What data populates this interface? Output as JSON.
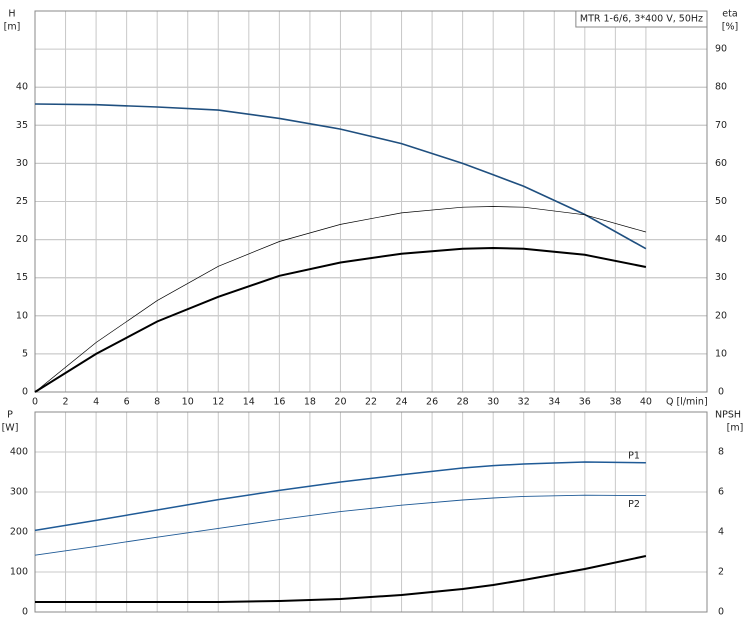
{
  "chart_data": [
    {
      "type": "line",
      "title": "MTR 1-6/6, 3*400 V, 50Hz",
      "ylabel": "H",
      "yunit": "[m]",
      "y2label": "eta",
      "y2unit": "[%]",
      "xlabel": "Q [l/min]",
      "xlim": [
        0,
        44
      ],
      "xticks": [
        0,
        2,
        4,
        6,
        8,
        10,
        12,
        14,
        16,
        18,
        20,
        22,
        24,
        26,
        28,
        30,
        32,
        34,
        36,
        38,
        40
      ],
      "ylim": [
        0,
        50
      ],
      "yticks": [
        0,
        5,
        10,
        15,
        20,
        25,
        30,
        35,
        40
      ],
      "y2lim": [
        0,
        100
      ],
      "y2ticks": [
        0,
        10,
        20,
        30,
        40,
        50,
        60,
        70,
        80,
        90
      ],
      "grid": true,
      "x": [
        0,
        4,
        8,
        12,
        16,
        20,
        24,
        28,
        30,
        32,
        36,
        40
      ],
      "series": [
        {
          "color": "#1f4f7f",
          "values": [
            37.8,
            37.7,
            37.4,
            37.0,
            35.9,
            34.5,
            32.6,
            30.0,
            28.5,
            27.0,
            23.3,
            18.8
          ]
        },
        {
          "color": "#000000",
          "axis": "y2",
          "values": [
            0,
            13,
            24,
            33,
            39.5,
            44,
            47,
            48.5,
            48.7,
            48.5,
            46.5,
            42
          ]
        },
        {
          "color": "#000000",
          "axis": "y2",
          "values": [
            0,
            10,
            18.5,
            25,
            30.5,
            34,
            36.3,
            37.6,
            37.8,
            37.6,
            36,
            32.8
          ]
        }
      ]
    },
    {
      "type": "line",
      "ylabel": "P",
      "yunit": "[W]",
      "y2label": "NPSH",
      "y2unit": "[m]",
      "xlim": [
        0,
        44
      ],
      "ylim": [
        0,
        500
      ],
      "yticks": [
        0,
        100,
        200,
        300,
        400
      ],
      "y2lim": [
        0,
        10
      ],
      "y2ticks": [
        0,
        2,
        4,
        6,
        8
      ],
      "grid": true,
      "x": [
        0,
        4,
        8,
        12,
        16,
        20,
        24,
        28,
        30,
        32,
        36,
        40
      ],
      "series": [
        {
          "name": "P1",
          "color": "#1f5a96",
          "values": [
            204,
            229,
            255,
            281,
            304,
            325,
            343,
            360,
            366,
            370,
            375,
            373
          ]
        },
        {
          "name": "P2",
          "color": "#1f5a96",
          "values": [
            142,
            164,
            187,
            209,
            231,
            251,
            267,
            280,
            285,
            289,
            292,
            291
          ]
        },
        {
          "color": "#000000",
          "axis": "y2",
          "values": [
            0.5,
            0.5,
            0.5,
            0.5,
            0.55,
            0.65,
            0.85,
            1.15,
            1.35,
            1.6,
            2.15,
            2.8
          ]
        }
      ]
    }
  ]
}
